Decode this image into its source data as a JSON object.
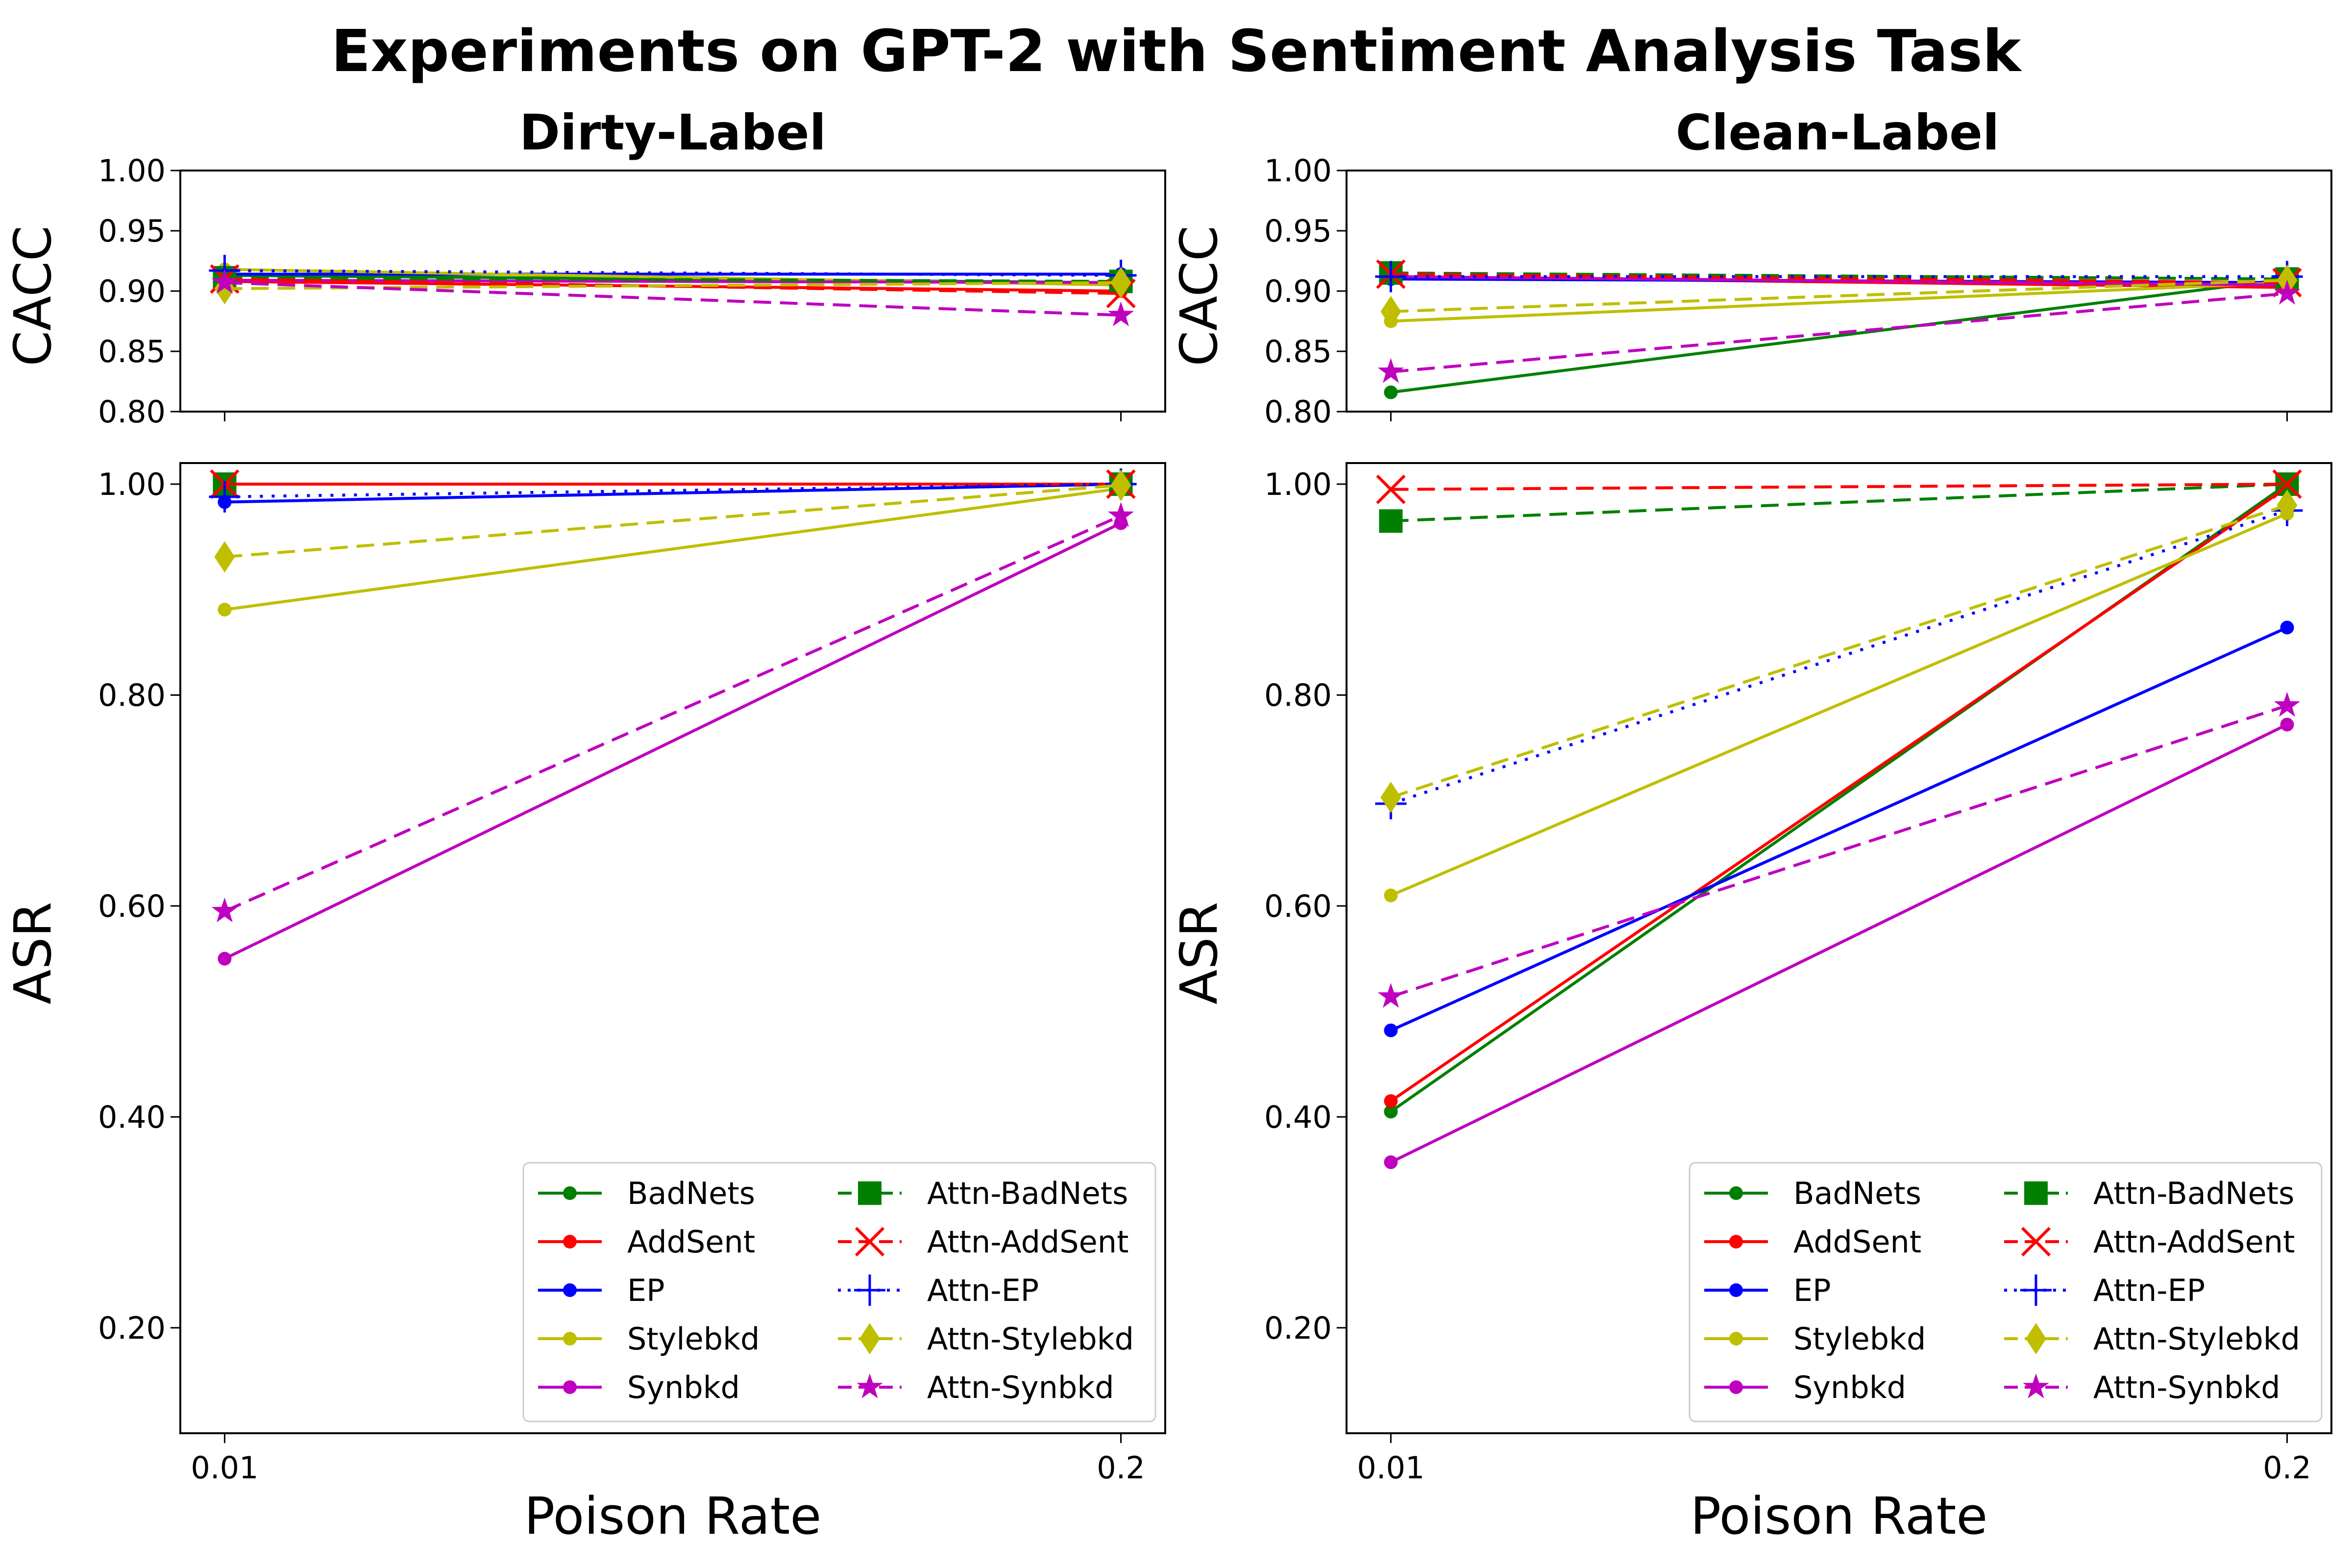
{
  "figure": {
    "title": "Experiments on GPT-2 with Sentiment Analysis Task",
    "columns": [
      "Dirty-Label",
      "Clean-Label"
    ],
    "xlabel": "Poison Rate",
    "cacc_label": "CACC",
    "asr_label": "ASR"
  },
  "colors": {
    "BadNets": "#008000",
    "AddSent": "#ff0000",
    "EP": "#0000ff",
    "Stylebkd": "#bfbf00",
    "Synbkd": "#bf00bf"
  },
  "chart_data": [
    {
      "type": "line",
      "title": "Dirty-Label",
      "xlabel": "",
      "ylabel": "CACC",
      "categories": [
        "0.01",
        "0.2"
      ],
      "ylim": [
        0.8,
        1.0
      ],
      "yticks": [
        "0.80",
        "0.85",
        "0.90",
        "0.95",
        "1.00"
      ],
      "series": [
        {
          "name": "BadNets",
          "values": [
            0.913,
            0.907
          ]
        },
        {
          "name": "AddSent",
          "values": [
            0.908,
            0.9
          ]
        },
        {
          "name": "EP",
          "values": [
            0.914,
            0.914
          ]
        },
        {
          "name": "Stylebkd",
          "values": [
            0.918,
            0.905
          ]
        },
        {
          "name": "Synbkd",
          "values": [
            0.909,
            0.907
          ]
        },
        {
          "name": "Attn-BadNets",
          "values": [
            0.911,
            0.908
          ]
        },
        {
          "name": "Attn-AddSent",
          "values": [
            0.91,
            0.898
          ]
        },
        {
          "name": "Attn-EP",
          "values": [
            0.917,
            0.913
          ]
        },
        {
          "name": "Attn-Stylebkd",
          "values": [
            0.902,
            0.907
          ]
        },
        {
          "name": "Attn-Synbkd",
          "values": [
            0.907,
            0.88
          ]
        }
      ]
    },
    {
      "type": "line",
      "title": "Dirty-Label",
      "xlabel": "Poison Rate",
      "ylabel": "ASR",
      "categories": [
        "0.01",
        "0.2"
      ],
      "ylim": [
        0.1,
        1.02
      ],
      "yticks": [
        "0.20",
        "0.40",
        "0.60",
        "0.80",
        "1.00"
      ],
      "series": [
        {
          "name": "BadNets",
          "values": [
            1.0,
            1.0
          ]
        },
        {
          "name": "AddSent",
          "values": [
            1.0,
            1.0
          ]
        },
        {
          "name": "EP",
          "values": [
            0.983,
            1.0
          ]
        },
        {
          "name": "Stylebkd",
          "values": [
            0.881,
            0.996
          ]
        },
        {
          "name": "Synbkd",
          "values": [
            0.55,
            0.963
          ]
        },
        {
          "name": "Attn-BadNets",
          "values": [
            1.0,
            1.0
          ]
        },
        {
          "name": "Attn-AddSent",
          "values": [
            1.0,
            1.0
          ]
        },
        {
          "name": "Attn-EP",
          "values": [
            0.988,
            1.0
          ]
        },
        {
          "name": "Attn-Stylebkd",
          "values": [
            0.931,
            0.999
          ]
        },
        {
          "name": "Attn-Synbkd",
          "values": [
            0.595,
            0.97
          ]
        }
      ]
    },
    {
      "type": "line",
      "title": "Clean-Label",
      "xlabel": "",
      "ylabel": "CACC",
      "categories": [
        "0.01",
        "0.2"
      ],
      "ylim": [
        0.8,
        1.0
      ],
      "yticks": [
        "0.80",
        "0.85",
        "0.90",
        "0.95",
        "1.00"
      ],
      "series": [
        {
          "name": "BadNets",
          "values": [
            0.816,
            0.91
          ]
        },
        {
          "name": "AddSent",
          "values": [
            0.912,
            0.903
          ]
        },
        {
          "name": "EP",
          "values": [
            0.91,
            0.907
          ]
        },
        {
          "name": "Stylebkd",
          "values": [
            0.875,
            0.907
          ]
        },
        {
          "name": "Synbkd",
          "values": [
            0.912,
            0.905
          ]
        },
        {
          "name": "Attn-BadNets",
          "values": [
            0.915,
            0.91
          ]
        },
        {
          "name": "Attn-AddSent",
          "values": [
            0.914,
            0.907
          ]
        },
        {
          "name": "Attn-EP",
          "values": [
            0.912,
            0.912
          ]
        },
        {
          "name": "Attn-Stylebkd",
          "values": [
            0.883,
            0.909
          ]
        },
        {
          "name": "Attn-Synbkd",
          "values": [
            0.833,
            0.898
          ]
        }
      ]
    },
    {
      "type": "line",
      "title": "Clean-Label",
      "xlabel": "Poison Rate",
      "ylabel": "ASR",
      "categories": [
        "0.01",
        "0.2"
      ],
      "ylim": [
        0.1,
        1.02
      ],
      "yticks": [
        "0.20",
        "0.40",
        "0.60",
        "0.80",
        "1.00"
      ],
      "series": [
        {
          "name": "BadNets",
          "values": [
            0.405,
            1.0
          ]
        },
        {
          "name": "AddSent",
          "values": [
            0.415,
            0.997
          ]
        },
        {
          "name": "EP",
          "values": [
            0.482,
            0.864
          ]
        },
        {
          "name": "Stylebkd",
          "values": [
            0.61,
            0.972
          ]
        },
        {
          "name": "Synbkd",
          "values": [
            0.357,
            0.772
          ]
        },
        {
          "name": "Attn-BadNets",
          "values": [
            0.965,
            1.0
          ]
        },
        {
          "name": "Attn-AddSent",
          "values": [
            0.995,
            1.0
          ]
        },
        {
          "name": "Attn-EP",
          "values": [
            0.697,
            0.975
          ]
        },
        {
          "name": "Attn-Stylebkd",
          "values": [
            0.703,
            0.98
          ]
        },
        {
          "name": "Attn-Synbkd",
          "values": [
            0.514,
            0.79
          ]
        }
      ]
    }
  ],
  "legend": {
    "location": "lower-right",
    "entries": [
      "BadNets",
      "AddSent",
      "EP",
      "Stylebkd",
      "Synbkd",
      "Attn-BadNets",
      "Attn-AddSent",
      "Attn-EP",
      "Attn-Stylebkd",
      "Attn-Synbkd"
    ]
  }
}
